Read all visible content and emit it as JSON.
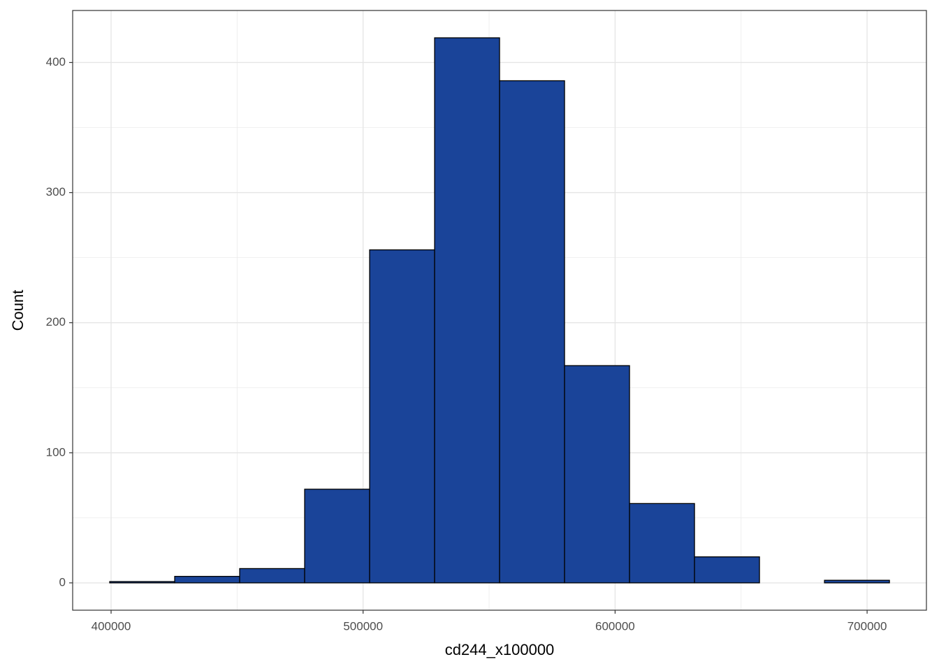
{
  "chart_data": {
    "type": "histogram",
    "x_label": "cd244_x100000",
    "y_label": "Count",
    "bins": [
      399450,
      425235,
      451020,
      476805,
      502590,
      528375,
      554160,
      579945,
      605730,
      631515,
      657300,
      683085,
      708870
    ],
    "values": [
      1,
      5,
      11,
      72,
      256,
      419,
      386,
      167,
      61,
      20,
      0,
      2
    ],
    "color": "#1a4499",
    "edge_color": "#000000",
    "xlim": [
      384750,
      723540
    ],
    "ylim": [
      -21,
      440
    ],
    "xticks": [
      400000,
      500000,
      600000,
      700000
    ],
    "yticks": [
      0,
      100,
      200,
      300,
      400
    ],
    "grid": true,
    "minor_grid": true
  }
}
